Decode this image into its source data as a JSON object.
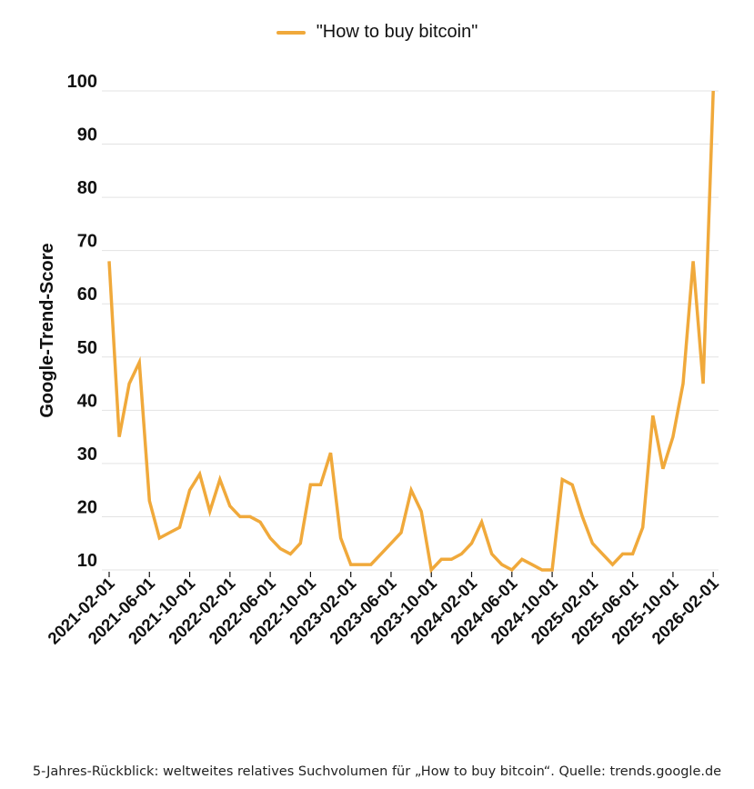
{
  "chart_data": {
    "type": "line",
    "title": "",
    "xlabel": "",
    "ylabel": "Google-Trend-Score",
    "ylim": [
      10,
      100
    ],
    "yticks": [
      10,
      20,
      30,
      40,
      50,
      60,
      70,
      80,
      90,
      100
    ],
    "grid": true,
    "legend_position": "top-center",
    "xtick_labels": [
      "2021-02-01",
      "2021-06-01",
      "2021-10-01",
      "2022-02-01",
      "2022-06-01",
      "2022-10-01",
      "2023-02-01",
      "2023-06-01",
      "2023-10-01",
      "2024-02-01",
      "2024-06-01",
      "2024-10-01",
      "2025-02-01",
      "2025-06-01",
      "2025-10-01",
      "2026-02-01"
    ],
    "x_start": "2021-02-01",
    "x_step": "monthly",
    "series": [
      {
        "name": "\"How to buy bitcoin\"",
        "color": "#f0a93b",
        "values": [
          68,
          35,
          45,
          49,
          23,
          16,
          17,
          18,
          25,
          28,
          21,
          27,
          22,
          20,
          20,
          19,
          16,
          14,
          13,
          15,
          26,
          26,
          32,
          16,
          11,
          11,
          11,
          13,
          15,
          17,
          25,
          21,
          10,
          12,
          12,
          13,
          15,
          19,
          13,
          11,
          10,
          12,
          11,
          10,
          10,
          27,
          26,
          20,
          15,
          13,
          11,
          13,
          13,
          18,
          39,
          29,
          35,
          45,
          68,
          45,
          100
        ]
      }
    ]
  },
  "caption": "5-Jahres-Rückblick: weltweites relatives Suchvolumen für „How to buy bitcoin“. Quelle: trends.google.de"
}
